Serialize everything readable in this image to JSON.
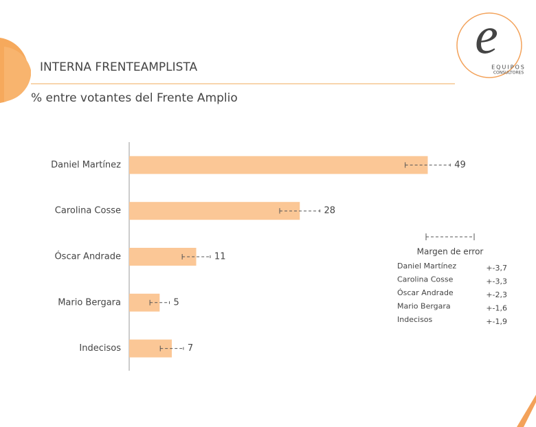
{
  "chart_data": {
    "type": "bar",
    "orientation": "horizontal",
    "title": "INTERNA FRENTEAMPLISTA",
    "subtitle": "% entre votantes del Frente Amplio",
    "categories": [
      "Daniel  Martínez",
      "Carolina Cosse",
      "Óscar Andrade",
      "Mario Bergara",
      "Indecisos"
    ],
    "values": [
      49,
      28,
      11,
      5,
      7
    ],
    "errors": [
      3.7,
      3.3,
      2.3,
      1.6,
      1.9
    ],
    "error_labels": [
      "+-3,7",
      "+-3,3",
      "+-2,3",
      "+-1,6",
      "+-1,9"
    ],
    "color": "#fbc796",
    "xlim": [
      0,
      60
    ],
    "legend_title": "Margen de error",
    "logo": {
      "letter": "e",
      "name": "EQUIPOS",
      "sub": "CONSULTORES"
    }
  }
}
